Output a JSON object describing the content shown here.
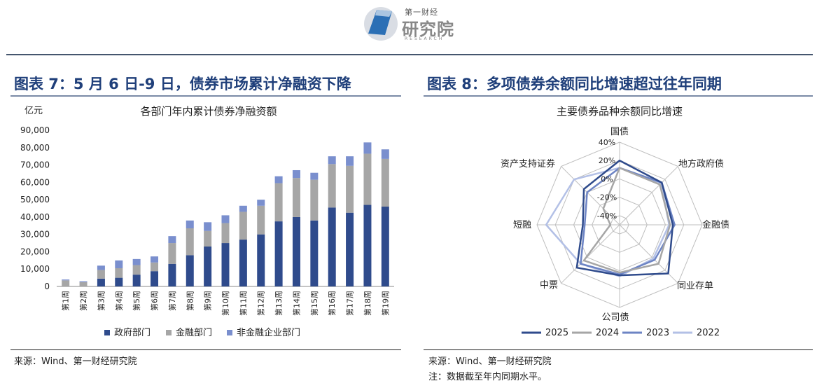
{
  "header": {
    "logo_line1": "第一财经",
    "logo_line2": "研究院",
    "logo_line3": "RESEARCH"
  },
  "left": {
    "title": "图表 7：5 月 6 日-9 日，债券市场累计净融资下降",
    "source": "来源：Wind、第一财经研究院"
  },
  "right": {
    "title": "图表 8：多项债券余额同比增速超过往年同期",
    "source": "来源：Wind、第一财经研究院",
    "note": "注：数据截至年内同期水平。"
  },
  "colors": {
    "gov": "#2f4b8c",
    "fin": "#a6a6a6",
    "nonfin": "#7a8fce",
    "s2025": "#2f4b8c",
    "s2024": "#a6a6a6",
    "s2023": "#6d84c4",
    "s2022": "#b3c0e6",
    "grid": "#bfbfbf"
  },
  "chart_data": [
    {
      "type": "bar",
      "stacked": true,
      "title": "各部门年内累计债券净融资额",
      "ylabel": "亿元",
      "ylim": [
        0,
        90000
      ],
      "yticks": [
        "0",
        "10,000",
        "20,000",
        "30,000",
        "40,000",
        "50,000",
        "60,000",
        "70,000",
        "80,000",
        "90,000"
      ],
      "categories": [
        "第1周",
        "第2周",
        "第3周",
        "第4周",
        "第5周",
        "第6周",
        "第7周",
        "第8周",
        "第9周",
        "第10周",
        "第11周",
        "第12周",
        "第13周",
        "第14周",
        "第15周",
        "第16周",
        "第17周",
        "第18周",
        "第19周"
      ],
      "series": [
        {
          "name": "政府部门",
          "values": [
            0,
            0,
            4500,
            5000,
            6800,
            8800,
            13000,
            18000,
            23000,
            25000,
            27000,
            30000,
            37500,
            40000,
            38000,
            45500,
            42500,
            47000,
            46000
          ]
        },
        {
          "name": "金融部门",
          "values": [
            3500,
            2500,
            5000,
            5500,
            5500,
            5000,
            12000,
            15500,
            9000,
            11500,
            16000,
            16500,
            22000,
            22500,
            23500,
            25000,
            27000,
            29500,
            27500
          ]
        },
        {
          "name": "非金融企业部门",
          "values": [
            500,
            500,
            2500,
            4500,
            3500,
            3500,
            4000,
            4500,
            5000,
            4500,
            3500,
            3500,
            4000,
            4500,
            4000,
            4500,
            5500,
            6500,
            5500
          ]
        }
      ],
      "legend": "bottom"
    },
    {
      "type": "radar",
      "title": "主要债券品种余额同比增速",
      "categories": [
        "国债",
        "地方政府债",
        "金融债",
        "同业存单",
        "公司债",
        "中票",
        "短融",
        "资产支持证券"
      ],
      "axis_ticks": [
        "40%",
        "20%",
        "0%",
        "-20%",
        "-40%"
      ],
      "rlim": [
        -50,
        40
      ],
      "series": [
        {
          "name": "2025",
          "values": [
            20,
            15,
            8,
            25,
            5,
            16,
            -10,
            5
          ]
        },
        {
          "name": "2024",
          "values": [
            12,
            12,
            5,
            10,
            2,
            5,
            -40,
            -25
          ]
        },
        {
          "name": "2023",
          "values": [
            12,
            15,
            10,
            4,
            4,
            10,
            -12,
            0
          ]
        },
        {
          "name": "2022",
          "values": [
            12,
            14,
            4,
            2,
            6,
            10,
            30,
            20
          ]
        }
      ],
      "legend": "bottom"
    }
  ]
}
